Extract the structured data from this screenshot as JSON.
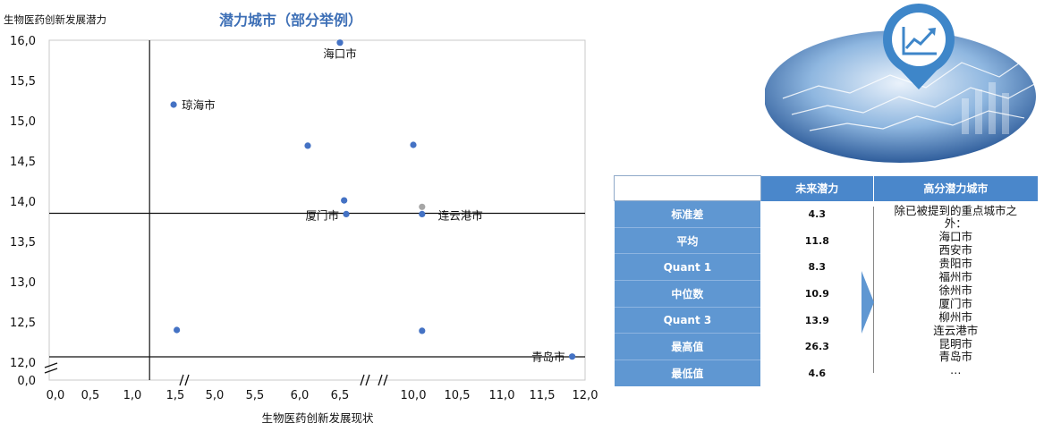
{
  "chart_data": {
    "type": "scatter",
    "title": "潜力城市（部分举例）",
    "xlabel": "生物医药创新发展现状",
    "ylabel": "生物医药创新发展潜力",
    "x_ticks": [
      "0,0",
      "0,5",
      "1,0",
      "1,5",
      "5,0",
      "5,5",
      "6,0",
      "6,5",
      "10,0",
      "10,5",
      "11,0",
      "11,5",
      "12,0"
    ],
    "y_ticks": [
      "0,0",
      "12,0",
      "12,5",
      "13,0",
      "13,5",
      "14,0",
      "14,5",
      "15,0",
      "15,5",
      "16,0"
    ],
    "axis_breaks": [
      "x: 1,5–5,0",
      "x: 6,5–10,0",
      "y: 0,0–12,0"
    ],
    "reference_lines": {
      "x": 1.2,
      "y": 13.85
    },
    "points": [
      {
        "x": 6.5,
        "y": 15.97,
        "label": "海口市"
      },
      {
        "x": 1.48,
        "y": 15.2,
        "label": "琼海市"
      },
      {
        "x": 6.1,
        "y": 14.69,
        "label": ""
      },
      {
        "x": 10.0,
        "y": 14.7,
        "label": ""
      },
      {
        "x": 6.7,
        "y": 14.01,
        "label": ""
      },
      {
        "x": 10.1,
        "y": 13.93,
        "label": "",
        "color": "#a6a6a6"
      },
      {
        "x": 6.8,
        "y": 13.84,
        "label": "厦门市"
      },
      {
        "x": 10.1,
        "y": 13.84,
        "label": "连云港市"
      },
      {
        "x": 1.63,
        "y": 12.4,
        "label": ""
      },
      {
        "x": 10.1,
        "y": 12.39,
        "label": ""
      },
      {
        "x": 11.85,
        "y": 12.07,
        "label": "青岛市"
      }
    ],
    "point_color": "#4472c4",
    "grid": false
  },
  "illustration": {
    "icon": "line-chart-up-icon",
    "color": "#3e86c9"
  },
  "stats_table": {
    "headers": [
      "",
      "未来潜力",
      "高分潜力城市"
    ],
    "rows": [
      {
        "label": "标准差",
        "value": "4.3"
      },
      {
        "label": "平均",
        "value": "11.8"
      },
      {
        "label": "Quant 1",
        "value": "8.3"
      },
      {
        "label": "中位数",
        "value": "10.9"
      },
      {
        "label": "Quant 3",
        "value": "13.9"
      },
      {
        "label": "最高值",
        "value": "26.3"
      },
      {
        "label": "最低值",
        "value": "4.6"
      }
    ],
    "cities_intro": "除已被提到的重点城市之外：",
    "cities": [
      "海口市",
      "西安市",
      "贵阳市",
      "福州市",
      "徐州市",
      "厦门市",
      "柳州市",
      "连云港市",
      "昆明市",
      "青岛市",
      "…"
    ]
  }
}
